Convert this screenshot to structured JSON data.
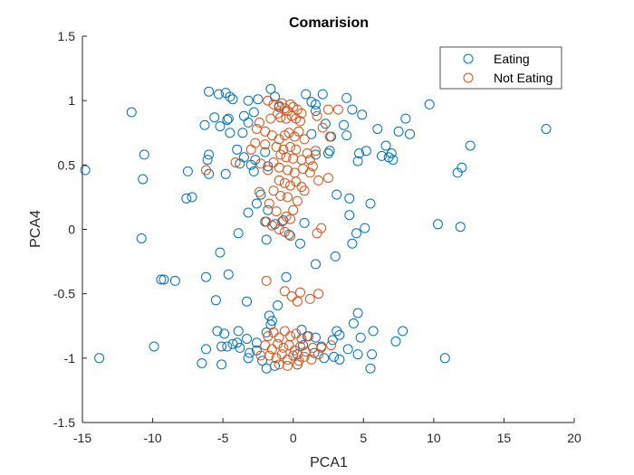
{
  "chart_data": {
    "type": "scatter",
    "title": "Comarision",
    "xlabel": "PCA1",
    "ylabel": "PCA4",
    "xlim": [
      -15,
      20
    ],
    "ylim": [
      -1.5,
      1.5
    ],
    "xticks": [
      -15,
      -10,
      -5,
      0,
      5,
      10,
      15,
      20
    ],
    "yticks": [
      -1.5,
      -1,
      -0.5,
      0,
      0.5,
      1,
      1.5
    ],
    "xtick_labels": [
      "-15",
      "-10",
      "-5",
      "0",
      "5",
      "10",
      "15",
      "20"
    ],
    "ytick_labels": [
      "-1.5",
      "-1",
      "-0.5",
      "0",
      "0.5",
      "1",
      "1.5"
    ],
    "grid": false,
    "legend_position": "top-right",
    "marker": "open-circle",
    "series": [
      {
        "name": "Eating",
        "color": "#0072BD",
        "points": [
          [
            -14.8,
            0.46
          ],
          [
            -11.5,
            0.91
          ],
          [
            -10.6,
            0.58
          ],
          [
            -10.7,
            0.39
          ],
          [
            -7.5,
            0.45
          ],
          [
            -7.2,
            0.25
          ],
          [
            -7.6,
            0.24
          ],
          [
            -6.0,
            1.07
          ],
          [
            -5.3,
            1.05
          ],
          [
            -4.8,
            1.06
          ],
          [
            -4.5,
            1.03
          ],
          [
            -4.3,
            1.01
          ],
          [
            -3.2,
            1.0
          ],
          [
            -2.5,
            1.01
          ],
          [
            -1.6,
            1.09
          ],
          [
            -1.3,
            1.03
          ],
          [
            -6.3,
            0.81
          ],
          [
            -5.6,
            0.87
          ],
          [
            -5.2,
            0.8
          ],
          [
            -4.7,
            0.85
          ],
          [
            -4.6,
            0.86
          ],
          [
            -3.5,
            0.88
          ],
          [
            -3.2,
            0.83
          ],
          [
            -2.8,
            0.91
          ],
          [
            -1.0,
            0.95
          ],
          [
            -4.5,
            0.75
          ],
          [
            -3.6,
            0.75
          ],
          [
            -6.0,
            0.58
          ],
          [
            -6.1,
            0.54
          ],
          [
            -6.0,
            0.43
          ],
          [
            -3.5,
            0.56
          ],
          [
            -2.7,
            0.54
          ],
          [
            -3.0,
            0.5
          ],
          [
            -2.8,
            0.45
          ],
          [
            -4.8,
            0.43
          ],
          [
            -3.8,
            0.51
          ],
          [
            -1.8,
            0.49
          ],
          [
            -2.0,
            0.6
          ],
          [
            -4.0,
            0.62
          ],
          [
            -3.2,
            0.13
          ],
          [
            -2.6,
            0.2
          ],
          [
            -2.3,
            0.27
          ],
          [
            -1.8,
            0.15
          ],
          [
            -2.0,
            0.06
          ],
          [
            -1.3,
            0.04
          ],
          [
            -0.7,
            0.07
          ],
          [
            -3.9,
            -0.03
          ],
          [
            -1.9,
            -0.08
          ],
          [
            -10.8,
            -0.07
          ],
          [
            -5.2,
            -0.18
          ],
          [
            -9.4,
            -0.39
          ],
          [
            -9.2,
            -0.39
          ],
          [
            -8.4,
            -0.4
          ],
          [
            -6.2,
            -0.37
          ],
          [
            -4.6,
            -0.35
          ],
          [
            -5.5,
            -0.55
          ],
          [
            -3.3,
            -0.56
          ],
          [
            -0.5,
            -0.37
          ],
          [
            1.6,
            -0.27
          ],
          [
            -1.1,
            -0.59
          ],
          [
            -5.4,
            -0.79
          ],
          [
            -4.9,
            -0.81
          ],
          [
            -3.9,
            -0.79
          ],
          [
            -3.3,
            -0.85
          ],
          [
            -1.7,
            -0.67
          ],
          [
            -1.5,
            -0.71
          ],
          [
            -1.6,
            -0.74
          ],
          [
            -1.9,
            -0.8
          ],
          [
            -2.6,
            -0.88
          ],
          [
            -4.0,
            -0.88
          ],
          [
            -4.7,
            -0.91
          ],
          [
            -5.1,
            -0.91
          ],
          [
            -6.2,
            -0.93
          ],
          [
            -9.9,
            -0.91
          ],
          [
            -13.8,
            -1.0
          ],
          [
            -6.5,
            -1.04
          ],
          [
            -5.1,
            -1.05
          ],
          [
            -3.1,
            -0.96
          ],
          [
            -3.2,
            -1.0
          ],
          [
            -2.2,
            -1.02
          ],
          [
            -1.9,
            -1.08
          ],
          [
            -1.3,
            -1.06
          ],
          [
            -2.6,
            -0.94
          ],
          [
            -3.8,
            -0.92
          ],
          [
            -4.3,
            -0.89
          ],
          [
            0.9,
            1.05
          ],
          [
            1.3,
            0.99
          ],
          [
            1.6,
            0.97
          ],
          [
            2.1,
            1.05
          ],
          [
            3.8,
            1.02
          ],
          [
            4.2,
            0.93
          ],
          [
            4.9,
            0.89
          ],
          [
            1.6,
            0.92
          ],
          [
            2.3,
            0.82
          ],
          [
            3.6,
            0.81
          ],
          [
            1.3,
            0.74
          ],
          [
            2.7,
            0.72
          ],
          [
            3.8,
            0.73
          ],
          [
            6.0,
            0.78
          ],
          [
            7.5,
            0.76
          ],
          [
            8.0,
            0.86
          ],
          [
            8.3,
            0.74
          ],
          [
            9.7,
            0.97
          ],
          [
            12.6,
            0.65
          ],
          [
            6.6,
            0.65
          ],
          [
            7.0,
            0.59
          ],
          [
            6.3,
            0.57
          ],
          [
            6.8,
            0.56
          ],
          [
            7.1,
            0.54
          ],
          [
            4.7,
            0.59
          ],
          [
            4.6,
            0.53
          ],
          [
            5.2,
            0.61
          ],
          [
            2.5,
            0.59
          ],
          [
            2.6,
            0.61
          ],
          [
            1.6,
            0.58
          ],
          [
            11.7,
            0.44
          ],
          [
            12.0,
            0.48
          ],
          [
            18.0,
            0.78
          ],
          [
            5.5,
            0.2
          ],
          [
            3.1,
            0.27
          ],
          [
            4.0,
            0.24
          ],
          [
            4.0,
            0.11
          ],
          [
            4.5,
            -0.03
          ],
          [
            5.1,
            0.01
          ],
          [
            4.2,
            -0.11
          ],
          [
            10.3,
            0.04
          ],
          [
            11.9,
            0.02
          ],
          [
            0.8,
            0.05
          ],
          [
            0.5,
            -0.11
          ],
          [
            3.0,
            -0.21
          ],
          [
            -0.3,
            -0.04
          ],
          [
            4.6,
            -0.65
          ],
          [
            4.3,
            -0.73
          ],
          [
            5.7,
            -0.79
          ],
          [
            7.8,
            -0.79
          ],
          [
            7.3,
            -0.87
          ],
          [
            4.8,
            -0.84
          ],
          [
            3.3,
            -0.82
          ],
          [
            3.1,
            -0.79
          ],
          [
            2.8,
            -0.86
          ],
          [
            2.0,
            -0.91
          ],
          [
            1.6,
            -0.84
          ],
          [
            1.0,
            -0.83
          ],
          [
            0.6,
            -0.78
          ],
          [
            3.9,
            -0.93
          ],
          [
            4.6,
            -0.97
          ],
          [
            5.6,
            -0.97
          ],
          [
            5.5,
            -1.08
          ],
          [
            10.8,
            -1.0
          ],
          [
            3.3,
            -1.01
          ],
          [
            2.9,
            -0.99
          ],
          [
            2.2,
            -1.0
          ],
          [
            0.3,
            -0.97
          ],
          [
            0.7,
            -0.9
          ],
          [
            1.5,
            -0.96
          ],
          [
            0.3,
            -1.05
          ]
        ]
      },
      {
        "name": "Not Eating",
        "color": "#D95319",
        "points": [
          [
            -1.8,
            1.0
          ],
          [
            -1.4,
            0.97
          ],
          [
            -1.0,
            0.96
          ],
          [
            -0.8,
            0.98
          ],
          [
            -0.6,
            0.94
          ],
          [
            -0.4,
            0.92
          ],
          [
            -0.2,
            0.97
          ],
          [
            0.0,
            0.95
          ],
          [
            0.3,
            0.93
          ],
          [
            0.6,
            0.9
          ],
          [
            -1.1,
            0.9
          ],
          [
            -0.9,
            0.87
          ],
          [
            -0.5,
            0.86
          ],
          [
            -0.1,
            0.88
          ],
          [
            0.2,
            0.86
          ],
          [
            0.5,
            0.84
          ],
          [
            -1.6,
            0.86
          ],
          [
            -2.4,
            0.83
          ],
          [
            -2.6,
            0.78
          ],
          [
            -2.0,
            0.76
          ],
          [
            -1.5,
            0.73
          ],
          [
            -1.0,
            0.7
          ],
          [
            -0.6,
            0.73
          ],
          [
            -0.3,
            0.75
          ],
          [
            0.1,
            0.72
          ],
          [
            0.4,
            0.76
          ],
          [
            0.8,
            0.7
          ],
          [
            -1.2,
            0.64
          ],
          [
            -0.7,
            0.62
          ],
          [
            -0.2,
            0.64
          ],
          [
            0.2,
            0.62
          ],
          [
            -2.0,
            0.66
          ],
          [
            -2.7,
            0.67
          ],
          [
            -3.0,
            0.62
          ],
          [
            -0.9,
            0.58
          ],
          [
            -0.5,
            0.56
          ],
          [
            0.0,
            0.55
          ],
          [
            0.6,
            0.54
          ],
          [
            1.0,
            0.59
          ],
          [
            -1.4,
            0.52
          ],
          [
            -1.8,
            0.46
          ],
          [
            -1.0,
            0.48
          ],
          [
            -0.4,
            0.46
          ],
          [
            0.1,
            0.44
          ],
          [
            0.7,
            0.47
          ],
          [
            1.2,
            0.44
          ],
          [
            -2.3,
            0.51
          ],
          [
            -6.2,
            0.46
          ],
          [
            -4.1,
            0.52
          ],
          [
            1.7,
            0.88
          ],
          [
            2.5,
            0.93
          ],
          [
            3.2,
            0.93
          ],
          [
            2.1,
            0.79
          ],
          [
            2.6,
            0.72
          ],
          [
            1.6,
            0.61
          ],
          [
            1.2,
            0.54
          ],
          [
            1.4,
            0.49
          ],
          [
            1.8,
            0.38
          ],
          [
            2.5,
            0.4
          ],
          [
            -1.0,
            0.38
          ],
          [
            -0.6,
            0.36
          ],
          [
            -0.2,
            0.34
          ],
          [
            0.2,
            0.37
          ],
          [
            0.6,
            0.33
          ],
          [
            -1.4,
            0.3
          ],
          [
            -0.9,
            0.26
          ],
          [
            -0.4,
            0.25
          ],
          [
            0.3,
            0.22
          ],
          [
            0.8,
            0.3
          ],
          [
            -2.4,
            0.29
          ],
          [
            -1.7,
            0.2
          ],
          [
            -1.2,
            0.14
          ],
          [
            -0.5,
            0.1
          ],
          [
            0.0,
            0.15
          ],
          [
            -1.9,
            0.06
          ],
          [
            -1.5,
            0.03
          ],
          [
            -0.8,
            0.06
          ],
          [
            -0.2,
            0.08
          ],
          [
            -1.0,
            0.0
          ],
          [
            -0.6,
            -0.02
          ],
          [
            -0.2,
            -0.05
          ],
          [
            1.7,
            -0.03
          ],
          [
            2.0,
            0.01
          ],
          [
            -1.9,
            -0.4
          ],
          [
            -0.6,
            -0.48
          ],
          [
            -0.1,
            -0.52
          ],
          [
            0.5,
            -0.49
          ],
          [
            1.2,
            -0.54
          ],
          [
            0.3,
            -0.56
          ],
          [
            1.8,
            -0.5
          ],
          [
            -1.8,
            -0.83
          ],
          [
            -1.4,
            -0.8
          ],
          [
            -1.0,
            -0.84
          ],
          [
            -0.6,
            -0.79
          ],
          [
            -0.2,
            -0.83
          ],
          [
            0.2,
            -0.81
          ],
          [
            0.6,
            -0.85
          ],
          [
            1.1,
            -0.83
          ],
          [
            -2.0,
            -0.9
          ],
          [
            -1.5,
            -0.93
          ],
          [
            -1.1,
            -0.89
          ],
          [
            -0.7,
            -0.92
          ],
          [
            -0.3,
            -0.9
          ],
          [
            0.1,
            -0.94
          ],
          [
            0.5,
            -0.91
          ],
          [
            0.9,
            -0.95
          ],
          [
            1.4,
            -0.92
          ],
          [
            -1.7,
            -0.98
          ],
          [
            -1.2,
            -1.0
          ],
          [
            -0.8,
            -0.97
          ],
          [
            -0.4,
            -1.01
          ],
          [
            0.0,
            -0.98
          ],
          [
            0.4,
            -1.02
          ],
          [
            0.8,
            -0.99
          ],
          [
            1.3,
            -1.01
          ],
          [
            1.8,
            -0.97
          ],
          [
            -2.3,
            -0.98
          ],
          [
            -1.0,
            -1.05
          ],
          [
            -0.4,
            -1.06
          ],
          [
            0.3,
            -1.05
          ],
          [
            2.0,
            -0.92
          ],
          [
            2.7,
            -0.9
          ]
        ]
      }
    ]
  }
}
